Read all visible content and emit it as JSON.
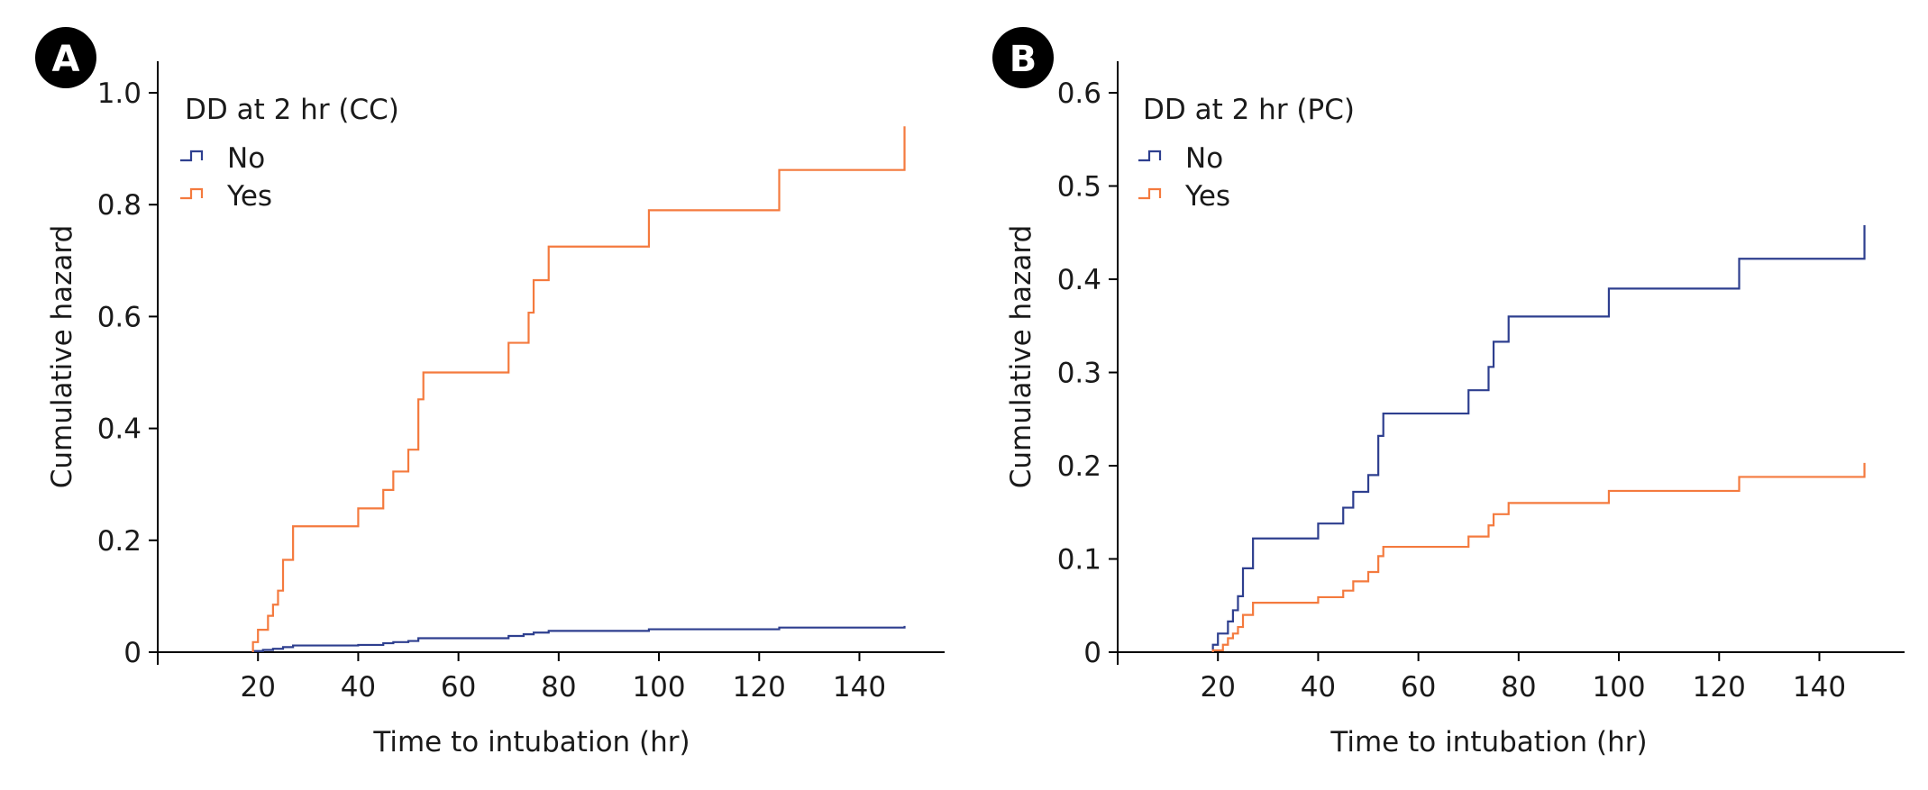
{
  "colors": {
    "no": "#2e3f8f",
    "yes": "#f47a3e",
    "axis": "#000000",
    "badge": "#000000"
  },
  "chart_data": [
    {
      "type": "line",
      "step": true,
      "panel": "A",
      "legend_title": "DD at 2 hr (CC)",
      "legend_placement": "top-left",
      "xlabel": "Time to intubation (hr)",
      "ylabel": "Cumulative hazard",
      "xlim": [
        0,
        157
      ],
      "ylim": [
        0,
        1.0
      ],
      "x_ticks": [
        "20",
        "40",
        "60",
        "80",
        "100",
        "120",
        "140"
      ],
      "y_ticks": [
        "0",
        "0.2",
        "0.4",
        "0.6",
        "0.8",
        "1.0"
      ],
      "grid": false,
      "series": [
        {
          "name": "No",
          "color_key": "no",
          "x": [
            19,
            21,
            23,
            25,
            27,
            40,
            45,
            47,
            50,
            52,
            70,
            73,
            75,
            78,
            98,
            124,
            149
          ],
          "y": [
            0.002,
            0.004,
            0.006,
            0.009,
            0.012,
            0.013,
            0.016,
            0.018,
            0.02,
            0.025,
            0.029,
            0.032,
            0.035,
            0.038,
            0.041,
            0.044,
            0.047
          ]
        },
        {
          "name": "Yes",
          "color_key": "yes",
          "x": [
            19,
            20,
            22,
            23,
            24,
            25,
            27,
            40,
            45,
            47,
            50,
            52,
            53,
            70,
            74,
            75,
            78,
            98,
            124,
            149
          ],
          "y": [
            0.018,
            0.04,
            0.065,
            0.085,
            0.11,
            0.165,
            0.225,
            0.257,
            0.29,
            0.323,
            0.362,
            0.452,
            0.5,
            0.553,
            0.607,
            0.665,
            0.725,
            0.79,
            0.862,
            0.94
          ]
        }
      ]
    },
    {
      "type": "line",
      "step": true,
      "panel": "B",
      "legend_title": "DD at 2 hr (PC)",
      "legend_placement": "top-left",
      "xlabel": "Time to intubation (hr)",
      "ylabel": "Cumulative hazard",
      "xlim": [
        0,
        157
      ],
      "ylim": [
        0,
        0.6
      ],
      "x_ticks": [
        "20",
        "40",
        "60",
        "80",
        "100",
        "120",
        "140"
      ],
      "y_ticks": [
        "0",
        "0.1",
        "0.2",
        "0.3",
        "0.4",
        "0.5",
        "0.6"
      ],
      "grid": false,
      "series": [
        {
          "name": "No",
          "color_key": "no",
          "x": [
            19,
            20,
            22,
            23,
            24,
            25,
            27,
            40,
            45,
            47,
            50,
            52,
            53,
            70,
            74,
            75,
            78,
            98,
            124,
            149
          ],
          "y": [
            0.008,
            0.02,
            0.033,
            0.045,
            0.06,
            0.09,
            0.122,
            0.138,
            0.155,
            0.172,
            0.19,
            0.232,
            0.256,
            0.281,
            0.306,
            0.333,
            0.36,
            0.39,
            0.422,
            0.458
          ]
        },
        {
          "name": "Yes",
          "color_key": "yes",
          "x": [
            19,
            21,
            22,
            23,
            24,
            25,
            27,
            40,
            45,
            47,
            50,
            52,
            53,
            70,
            74,
            75,
            78,
            98,
            124,
            149
          ],
          "y": [
            0.002,
            0.008,
            0.015,
            0.02,
            0.027,
            0.04,
            0.053,
            0.059,
            0.066,
            0.076,
            0.086,
            0.103,
            0.113,
            0.124,
            0.136,
            0.148,
            0.16,
            0.173,
            0.188,
            0.203
          ]
        }
      ]
    }
  ]
}
